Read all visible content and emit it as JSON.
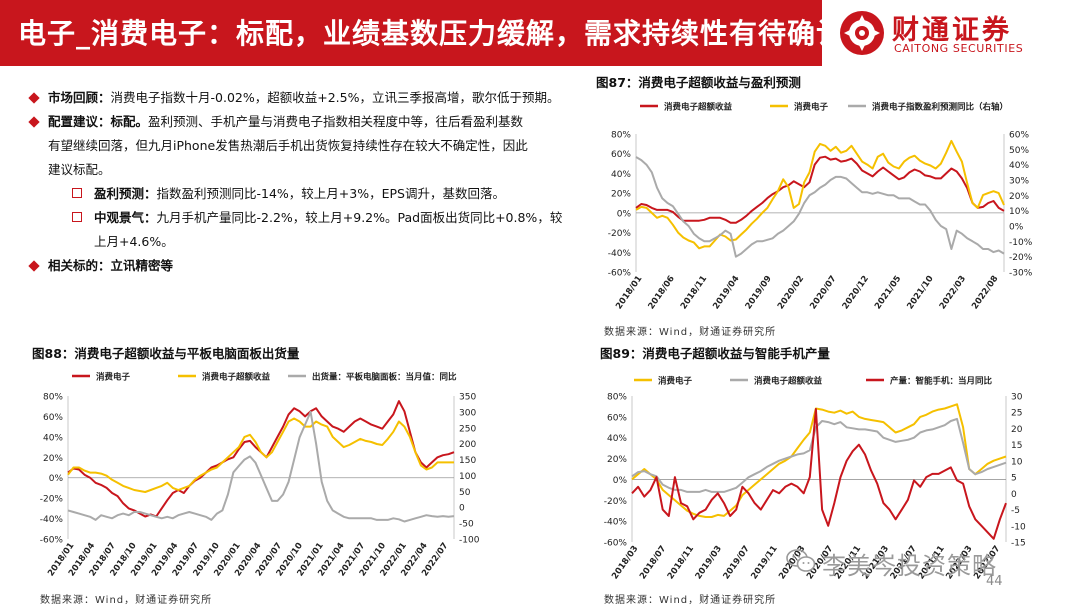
{
  "header": {
    "title": "电子_消费电子：标配，业绩基数压力缓解，需求持续性有待确认"
  },
  "logo": {
    "cn": "财通证券",
    "en": "CAITONG SECURITIES"
  },
  "bullets": {
    "b1": {
      "key": "市场回顾：",
      "text": "消费电子指数十月-0.02%，超额收益+2.5%，立讯三季报高增，歌尔低于预期。"
    },
    "b2": {
      "key": "配置建议：标配。",
      "line1": "盈利预测、手机产量与消费电子指数相关程度中等，往后看盈利基数",
      "line2": "有望继续回落，但九月iPhone发售热潮后手机出货恢复持续性存在较大不确定性，因此",
      "line3": "建议标配。"
    },
    "s1": {
      "key": "盈利预测：",
      "text": "指数盈利预测同比-14%，较上月+3%，EPS调升，基数回落。"
    },
    "s2": {
      "key": "中观景气：",
      "line1": "九月手机产量同比-2.2%，较上月+9.2%。Pad面板出货同比+0.8%，较",
      "line2": "上月+4.6%。"
    },
    "b3": {
      "key": "相关标的：立讯精密等"
    }
  },
  "fig87": {
    "title": "图87：消费电子超额收益与盈利预测",
    "source": "数据来源：Wind，财通证券研究所"
  },
  "fig88": {
    "title": "图88：消费电子超额收益与平板电脑面板出货量",
    "source": "数据来源：Wind，财通证券研究所"
  },
  "fig89": {
    "title": "图89：消费电子超额收益与智能手机产量",
    "source": "数据来源：Wind，财通证券研究所"
  },
  "watermark": "李美岑投资策略",
  "page_number": "44",
  "colors": {
    "red": "#c8161d",
    "yellow": "#f5c000",
    "gray": "#aaaaaa"
  },
  "chart_data": [
    {
      "id": "fig87",
      "type": "line",
      "xticks": [
        "2018/01",
        "2018/06",
        "2018/11",
        "2019/04",
        "2019/09",
        "2020/02",
        "2020/07",
        "2020/12",
        "2021/05",
        "2021/10",
        "2022/03",
        "2022/08"
      ],
      "ylim_left": [
        -60,
        80
      ],
      "yticks_left": [
        "80%",
        "60%",
        "40%",
        "20%",
        "0%",
        "-20%",
        "-40%",
        "-60%"
      ],
      "ylim_right": [
        -30,
        60
      ],
      "yticks_right": [
        "60%",
        "50%",
        "40%",
        "30%",
        "20%",
        "10%",
        "0%",
        "-10%",
        "-20%",
        "-30%"
      ],
      "legend": [
        "消费电子超额收益",
        "消费电子",
        "消费电子指数盈利预测同比（右轴）"
      ],
      "series": [
        {
          "name": "消费电子超额收益",
          "axis": "left",
          "color": "#c8161d",
          "values": [
            5,
            9,
            8,
            5,
            3,
            3,
            3,
            1,
            -4,
            -8,
            -8,
            -8,
            -8,
            -7,
            -5,
            -5,
            -5,
            -7,
            -10,
            -10,
            -7,
            -3,
            2,
            6,
            10,
            15,
            19,
            22,
            26,
            28,
            32,
            29,
            26,
            31,
            49,
            56,
            57,
            54,
            55,
            52,
            53,
            55,
            50,
            43,
            40,
            37,
            42,
            46,
            42,
            38,
            34,
            36,
            41,
            44,
            42,
            38,
            37,
            35,
            35,
            40,
            45,
            42,
            35,
            25,
            10,
            5,
            6,
            10,
            12,
            5,
            2
          ]
        },
        {
          "name": "消费电子",
          "axis": "left",
          "color": "#f5c000",
          "values": [
            3,
            6,
            5,
            0,
            -5,
            -3,
            -5,
            -12,
            -20,
            -25,
            -28,
            -30,
            -36,
            -34,
            -34,
            -28,
            -22,
            -24,
            -28,
            -27,
            -22,
            -17,
            -11,
            -6,
            0,
            5,
            14,
            22,
            34,
            26,
            5,
            9,
            31,
            41,
            62,
            70,
            68,
            63,
            67,
            61,
            63,
            68,
            60,
            52,
            49,
            45,
            57,
            60,
            51,
            47,
            45,
            52,
            56,
            58,
            53,
            50,
            48,
            45,
            50,
            61,
            73,
            62,
            52,
            30,
            10,
            5,
            18,
            20,
            22,
            20,
            8
          ]
        },
        {
          "name": "消费电子指数盈利预测同比（右轴）",
          "axis": "right",
          "color": "#aaaaaa",
          "values": [
            45,
            43,
            40,
            35,
            25,
            18,
            15,
            13,
            8,
            3,
            0,
            -5,
            -8,
            -10,
            -10,
            -8,
            -6,
            -3,
            -5,
            -20,
            -18,
            -15,
            -12,
            -10,
            -10,
            -9,
            -8,
            -5,
            -3,
            0,
            3,
            8,
            15,
            20,
            22,
            25,
            27,
            30,
            32,
            32,
            31,
            28,
            25,
            22,
            22,
            21,
            22,
            21,
            20,
            20,
            18,
            18,
            18,
            16,
            14,
            14,
            10,
            4,
            0,
            -2,
            -15,
            -3,
            -5,
            -8,
            -10,
            -12,
            -15,
            -15,
            -17,
            -16,
            -18
          ]
        }
      ]
    },
    {
      "id": "fig88",
      "type": "line",
      "xticks": [
        "2018/01",
        "2018/04",
        "2018/07",
        "2018/10",
        "2019/01",
        "2019/04",
        "2019/07",
        "2019/10",
        "2020/01",
        "2020/04",
        "2020/07",
        "2020/10",
        "2021/01",
        "2021/04",
        "2021/07",
        "2021/10",
        "2022/01",
        "2022/04",
        "2022/07"
      ],
      "ylim_left": [
        -60,
        80
      ],
      "yticks_left": [
        "80%",
        "60%",
        "40%",
        "20%",
        "0%",
        "-20%",
        "-40%",
        "-60%"
      ],
      "ylim_right": [
        -100,
        350
      ],
      "yticks_right": [
        "350",
        "300",
        "250",
        "200",
        "150",
        "100",
        "50",
        "0",
        "-50",
        "-100"
      ],
      "legend": [
        "消费电子",
        "消费电子超额收益",
        "出货量：平板电脑面板：当月值：同比"
      ],
      "series": [
        {
          "name": "消费电子",
          "axis": "left",
          "color": "#c8161d",
          "values": [
            5,
            9,
            8,
            3,
            0,
            -5,
            -7,
            -10,
            -15,
            -18,
            -25,
            -30,
            -32,
            -35,
            -38,
            -36,
            -38,
            -30,
            -22,
            -15,
            -12,
            -15,
            -8,
            -3,
            0,
            5,
            10,
            12,
            15,
            18,
            20,
            28,
            35,
            36,
            30,
            25,
            20,
            30,
            40,
            50,
            62,
            68,
            65,
            60,
            65,
            68,
            60,
            55,
            50,
            48,
            45,
            50,
            55,
            58,
            55,
            52,
            50,
            48,
            55,
            62,
            75,
            65,
            45,
            25,
            15,
            10,
            15,
            20,
            22,
            23,
            25
          ]
        },
        {
          "name": "消费电子超额收益",
          "axis": "left",
          "color": "#f5c000",
          "values": [
            3,
            10,
            10,
            7,
            5,
            5,
            4,
            2,
            -2,
            -5,
            -8,
            -10,
            -12,
            -13,
            -14,
            -12,
            -10,
            -8,
            -5,
            -10,
            -12,
            -10,
            -8,
            -2,
            2,
            5,
            8,
            10,
            15,
            20,
            25,
            30,
            40,
            42,
            35,
            25,
            20,
            25,
            35,
            45,
            55,
            58,
            55,
            50,
            50,
            55,
            52,
            50,
            40,
            35,
            30,
            32,
            35,
            38,
            36,
            35,
            33,
            32,
            38,
            45,
            55,
            50,
            40,
            25,
            12,
            8,
            10,
            15,
            15,
            15,
            15
          ]
        },
        {
          "name": "出货量：平板电脑面板：当月值：同比",
          "axis": "right",
          "color": "#aaaaaa",
          "values": [
            -10,
            -15,
            -20,
            -25,
            -30,
            -40,
            -25,
            -30,
            -35,
            -25,
            -20,
            -25,
            -15,
            -15,
            -20,
            -25,
            -30,
            -35,
            -30,
            -35,
            -25,
            -20,
            -15,
            -20,
            -25,
            -30,
            -40,
            -20,
            -10,
            40,
            110,
            130,
            150,
            160,
            140,
            100,
            60,
            20,
            20,
            40,
            80,
            150,
            220,
            260,
            300,
            200,
            80,
            20,
            -10,
            -20,
            -30,
            -35,
            -35,
            -35,
            -35,
            -35,
            -40,
            -40,
            -40,
            -35,
            -38,
            -45,
            -40,
            -35,
            -30,
            -25,
            -28,
            -30,
            -28,
            -30,
            -28
          ]
        }
      ]
    },
    {
      "id": "fig89",
      "type": "line",
      "xticks": [
        "2018/03",
        "2018/07",
        "2018/11",
        "2019/03",
        "2019/07",
        "2019/11",
        "2020/03",
        "2020/07",
        "2020/11",
        "2021/03",
        "2021/07",
        "2021/11",
        "2022/03",
        "2022/07"
      ],
      "ylim_left": [
        -60,
        80
      ],
      "yticks_left": [
        "80%",
        "60%",
        "40%",
        "20%",
        "0%",
        "-20%",
        "-40%",
        "-60%"
      ],
      "ylim_right": [
        -15,
        30
      ],
      "yticks_right": [
        "30",
        "25",
        "20",
        "15",
        "10",
        "5",
        "0",
        "-5",
        "-10",
        "-15"
      ],
      "legend": [
        "消费电子",
        "消费电子超额收益",
        "产量：智能手机：当月同比"
      ],
      "series": [
        {
          "name": "消费电子",
          "axis": "left",
          "color": "#f5c000",
          "values": [
            0,
            5,
            10,
            5,
            0,
            -10,
            -15,
            -20,
            -25,
            -30,
            -33,
            -35,
            -36,
            -36,
            -34,
            -35,
            -30,
            -25,
            -15,
            -10,
            -5,
            0,
            5,
            10,
            15,
            18,
            22,
            30,
            38,
            45,
            68,
            67,
            65,
            64,
            66,
            63,
            65,
            60,
            58,
            57,
            56,
            55,
            50,
            45,
            47,
            50,
            53,
            60,
            62,
            65,
            67,
            68,
            70,
            72,
            50,
            10,
            5,
            10,
            15,
            18,
            20,
            22
          ]
        },
        {
          "name": "消费电子超额收益",
          "axis": "left",
          "color": "#aaaaaa",
          "values": [
            3,
            7,
            8,
            5,
            3,
            -5,
            -8,
            -10,
            -10,
            -12,
            -12,
            -12,
            -10,
            -12,
            -12,
            -12,
            -10,
            -8,
            -3,
            2,
            5,
            8,
            12,
            15,
            18,
            20,
            22,
            24,
            25,
            28,
            50,
            56,
            55,
            53,
            55,
            50,
            49,
            48,
            48,
            47,
            46,
            40,
            38,
            36,
            37,
            38,
            40,
            45,
            47,
            48,
            50,
            52,
            56,
            58,
            35,
            10,
            5,
            7,
            10,
            12,
            14,
            16
          ]
        },
        {
          "name": "产量：智能手机：当月同比",
          "axis": "right",
          "color": "#c8161d",
          "values": [
            0,
            2,
            -1,
            1,
            5,
            -5,
            -7,
            5,
            -3,
            -4,
            -8,
            -6,
            -5,
            -2,
            0,
            -3,
            -7,
            -5,
            2,
            0,
            -3,
            -5,
            -2,
            1,
            0,
            2,
            3,
            2,
            0,
            5,
            26,
            -5,
            -10,
            -3,
            5,
            10,
            13,
            15,
            12,
            7,
            3,
            -3,
            -5,
            -8,
            -5,
            -2,
            4,
            2,
            5,
            6,
            6,
            7,
            8,
            4,
            3,
            -4,
            -8,
            -10,
            -12,
            -14,
            -8,
            -3
          ]
        }
      ]
    }
  ]
}
